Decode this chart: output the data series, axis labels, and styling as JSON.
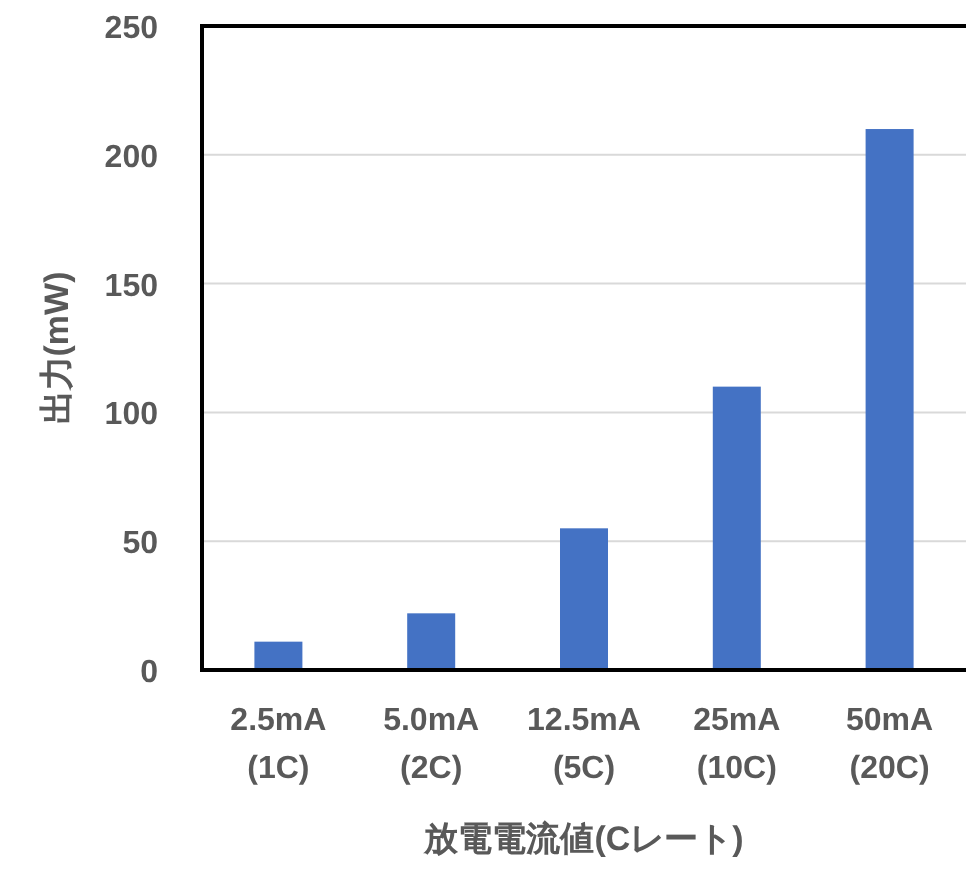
{
  "chart_data": {
    "type": "bar",
    "xlabel": "放電電流値(Cレート)",
    "ylabel": "出力(mW)",
    "categories": [
      "2.5mA\n(1C)",
      "5.0mA\n(2C)",
      "12.5mA\n(5C)",
      "25mA\n(10C)",
      "50mA\n(20C)"
    ],
    "values": [
      11,
      22,
      55,
      110,
      210
    ],
    "color": "#4472c4",
    "ylim": [
      0,
      250
    ],
    "yticks": [
      0,
      50,
      100,
      150,
      200,
      250
    ],
    "grid": "y"
  }
}
